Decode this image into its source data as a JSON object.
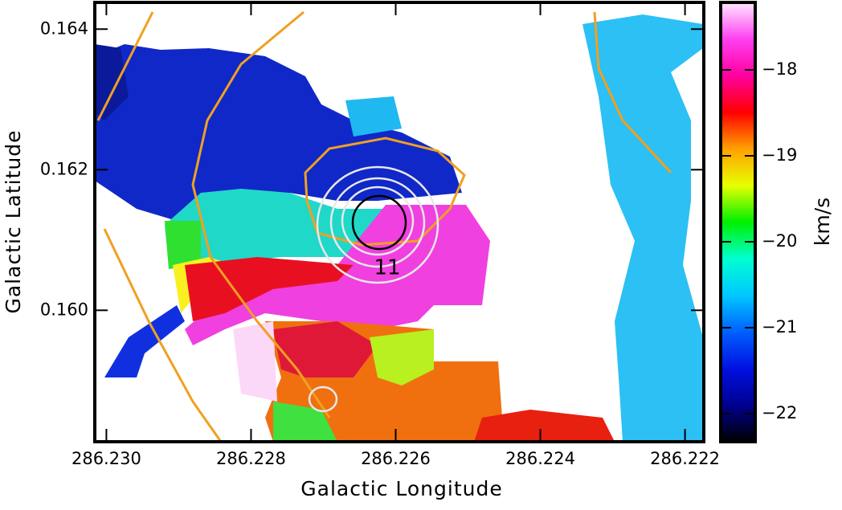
{
  "chart_data": {
    "type": "heatmap",
    "xlabel": "Galactic Longitude",
    "ylabel": "Galactic Latitude",
    "xlim": [
      286.23016,
      286.22174
    ],
    "xticks": [
      {
        "value": 286.23,
        "label": "286.230"
      },
      {
        "value": 286.228,
        "label": "286.228"
      },
      {
        "value": 286.226,
        "label": "286.226"
      },
      {
        "value": 286.224,
        "label": "286.224"
      },
      {
        "value": 286.222,
        "label": "286.222"
      }
    ],
    "ylim": [
      0.15813,
      0.16438
    ],
    "yticks": [
      {
        "value": 0.16,
        "label": "0.160"
      },
      {
        "value": 0.162,
        "label": "0.162"
      },
      {
        "value": 0.164,
        "label": "0.164"
      }
    ],
    "colorbar": {
      "label": "km/s",
      "zlim": [
        -22.327,
        -17.215
      ],
      "zticks": [
        {
          "value": -18,
          "label": "−18"
        },
        {
          "value": -19,
          "label": "−19"
        },
        {
          "value": -20,
          "label": "−20"
        },
        {
          "value": -21,
          "label": "−21"
        },
        {
          "value": -22,
          "label": "−22"
        }
      ],
      "colormap": [
        "#000000",
        "#000090",
        "#0010e0",
        "#0060ff",
        "#00c8ff",
        "#00ffd0",
        "#00f000",
        "#e8ff00",
        "#ffa000",
        "#ff0000",
        "#ff00a0",
        "#ff40f0",
        "#ffe8ff"
      ]
    },
    "annotation": "11"
  }
}
